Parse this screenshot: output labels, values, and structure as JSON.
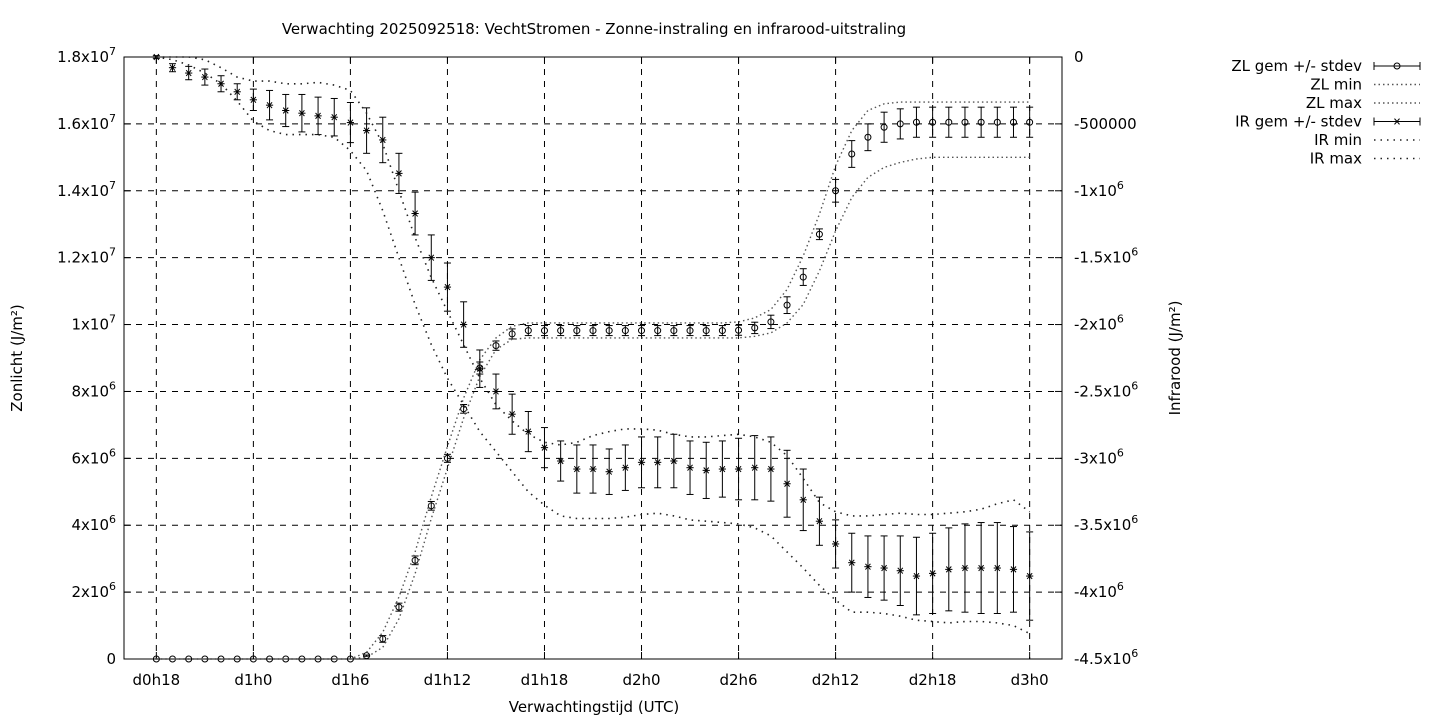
{
  "chart_data": {
    "type": "line",
    "title": "Verwachting 2025092518: VechtStromen - Zonne-instraling en infrarood-uitstraling",
    "xlabel": "Verwachtingstijd (UTC)",
    "ylabel": "Zonlicht (J/m²)",
    "y2label": "Infrarood (J/m²)",
    "x_tick_labels": [
      "d0h18",
      "d1h0",
      "d1h6",
      "d1h12",
      "d1h18",
      "d2h0",
      "d2h6",
      "d2h12",
      "d2h18",
      "d3h0"
    ],
    "x_tick_values": [
      0,
      6,
      12,
      18,
      24,
      30,
      36,
      42,
      48,
      54
    ],
    "xlim": [
      -2,
      56
    ],
    "ylim": [
      0,
      18000000
    ],
    "y2lim": [
      -4500000,
      0
    ],
    "y_ticks": [
      {
        "value": 0,
        "mant": "0",
        "exp": ""
      },
      {
        "value": 2000000,
        "mant": "2x10",
        "exp": "6"
      },
      {
        "value": 4000000,
        "mant": "4x10",
        "exp": "6"
      },
      {
        "value": 6000000,
        "mant": "6x10",
        "exp": "6"
      },
      {
        "value": 8000000,
        "mant": "8x10",
        "exp": "6"
      },
      {
        "value": 10000000,
        "mant": "1x10",
        "exp": "7"
      },
      {
        "value": 12000000,
        "mant": "1.2x10",
        "exp": "7"
      },
      {
        "value": 14000000,
        "mant": "1.4x10",
        "exp": "7"
      },
      {
        "value": 16000000,
        "mant": "1.6x10",
        "exp": "7"
      },
      {
        "value": 18000000,
        "mant": "1.8x10",
        "exp": "7"
      }
    ],
    "y2_ticks": [
      {
        "value": 0,
        "mant": "0",
        "exp": ""
      },
      {
        "value": -500000,
        "mant": "-500000",
        "exp": ""
      },
      {
        "value": -1000000,
        "mant": "-1x10",
        "exp": "6"
      },
      {
        "value": -1500000,
        "mant": "-1.5x10",
        "exp": "6"
      },
      {
        "value": -2000000,
        "mant": "-2x10",
        "exp": "6"
      },
      {
        "value": -2500000,
        "mant": "-2.5x10",
        "exp": "6"
      },
      {
        "value": -3000000,
        "mant": "-3x10",
        "exp": "6"
      },
      {
        "value": -3500000,
        "mant": "-3.5x10",
        "exp": "6"
      },
      {
        "value": -4000000,
        "mant": "-4x10",
        "exp": "6"
      },
      {
        "value": -4500000,
        "mant": "-4.5x10",
        "exp": "6"
      }
    ],
    "grid": true,
    "legend_position": "top-right outside",
    "legend": [
      {
        "label": "ZL gem +/- stdev",
        "style": "errorbar-circle"
      },
      {
        "label": "ZL min",
        "style": "dotted"
      },
      {
        "label": "ZL max",
        "style": "dotted"
      },
      {
        "label": "IR gem +/- stdev",
        "style": "errorbar-star"
      },
      {
        "label": "IR min",
        "style": "dotted"
      },
      {
        "label": "IR max",
        "style": "dotted"
      }
    ],
    "x": [
      0,
      1,
      2,
      3,
      4,
      5,
      6,
      7,
      8,
      9,
      10,
      11,
      12,
      13,
      14,
      15,
      16,
      17,
      18,
      19,
      20,
      21,
      22,
      23,
      24,
      25,
      26,
      27,
      28,
      29,
      30,
      31,
      32,
      33,
      34,
      35,
      36,
      37,
      38,
      39,
      40,
      41,
      42,
      43,
      44,
      45,
      46,
      47,
      48,
      49,
      50,
      51,
      52,
      53,
      54
    ],
    "series": [
      {
        "name": "ZL gem +/- stdev",
        "axis": "y",
        "marker": "circle",
        "values": [
          0,
          0,
          0,
          0,
          0,
          0,
          0,
          0,
          0,
          0,
          0,
          0,
          0,
          100000,
          600000,
          1550000,
          2950000,
          4580000,
          6000000,
          7480000,
          8700000,
          9370000,
          9720000,
          9820000,
          9820000,
          9820000,
          9820000,
          9820000,
          9820000,
          9820000,
          9820000,
          9820000,
          9820000,
          9820000,
          9820000,
          9820000,
          9830000,
          9900000,
          10080000,
          10580000,
          11420000,
          12700000,
          14000000,
          15100000,
          15600000,
          15900000,
          16000000,
          16050000,
          16050000,
          16050000,
          16050000,
          16050000,
          16050000,
          16050000,
          16050000
        ],
        "stdev": [
          0,
          0,
          0,
          0,
          0,
          0,
          0,
          0,
          0,
          0,
          0,
          0,
          0,
          20000,
          100000,
          120000,
          130000,
          130000,
          120000,
          130000,
          180000,
          140000,
          150000,
          150000,
          150000,
          150000,
          150000,
          150000,
          150000,
          150000,
          150000,
          150000,
          150000,
          150000,
          150000,
          150000,
          150000,
          170000,
          200000,
          250000,
          250000,
          160000,
          340000,
          400000,
          400000,
          450000,
          450000,
          450000,
          450000,
          450000,
          450000,
          450000,
          450000,
          450000,
          450000
        ]
      },
      {
        "name": "ZL min",
        "axis": "y",
        "values": [
          0,
          0,
          0,
          0,
          0,
          0,
          0,
          0,
          0,
          0,
          0,
          0,
          0,
          50000,
          350000,
          1200000,
          2550000,
          4200000,
          5700000,
          7200000,
          8450000,
          9250000,
          9560000,
          9600000,
          9600000,
          9600000,
          9600000,
          9600000,
          9600000,
          9600000,
          9600000,
          9600000,
          9600000,
          9600000,
          9600000,
          9600000,
          9600000,
          9650000,
          9750000,
          10050000,
          10600000,
          11600000,
          12800000,
          13800000,
          14400000,
          14700000,
          14850000,
          14950000,
          15000000,
          15000000,
          15000000,
          15000000,
          15000000,
          15000000,
          15000000
        ]
      },
      {
        "name": "ZL max",
        "axis": "y",
        "values": [
          0,
          0,
          0,
          0,
          0,
          0,
          0,
          0,
          0,
          0,
          0,
          0,
          0,
          200000,
          800000,
          1850000,
          3200000,
          4850000,
          6350000,
          7800000,
          8950000,
          9600000,
          9950000,
          10050000,
          10050000,
          10050000,
          10050000,
          10050000,
          10050000,
          10050000,
          10050000,
          10050000,
          10050000,
          10050000,
          10050000,
          10050000,
          10080000,
          10200000,
          10450000,
          11050000,
          12050000,
          13300000,
          14750000,
          15800000,
          16400000,
          16600000,
          16650000,
          16650000,
          16650000,
          16650000,
          16650000,
          16650000,
          16650000,
          16650000,
          16650000
        ]
      },
      {
        "name": "IR gem +/- stdev",
        "axis": "y2",
        "marker": "star",
        "values": [
          0,
          -80000,
          -120000,
          -150000,
          -200000,
          -260000,
          -320000,
          -360000,
          -400000,
          -420000,
          -440000,
          -450000,
          -490000,
          -550000,
          -620000,
          -870000,
          -1170000,
          -1500000,
          -1720000,
          -2000000,
          -2330000,
          -2500000,
          -2670000,
          -2800000,
          -2920000,
          -3020000,
          -3080000,
          -3080000,
          -3100000,
          -3070000,
          -3030000,
          -3030000,
          -3020000,
          -3070000,
          -3090000,
          -3080000,
          -3080000,
          -3070000,
          -3080000,
          -3190000,
          -3310000,
          -3470000,
          -3640000,
          -3780000,
          -3810000,
          -3820000,
          -3840000,
          -3880000,
          -3860000,
          -3830000,
          -3820000,
          -3820000,
          -3820000,
          -3830000,
          -3880000
        ],
        "stdev": [
          10000,
          30000,
          50000,
          60000,
          60000,
          60000,
          80000,
          110000,
          120000,
          140000,
          140000,
          140000,
          150000,
          170000,
          170000,
          150000,
          160000,
          170000,
          180000,
          170000,
          140000,
          130000,
          150000,
          150000,
          150000,
          150000,
          180000,
          180000,
          170000,
          170000,
          190000,
          190000,
          200000,
          200000,
          210000,
          210000,
          230000,
          240000,
          240000,
          250000,
          230000,
          180000,
          180000,
          220000,
          230000,
          240000,
          260000,
          290000,
          300000,
          310000,
          330000,
          340000,
          340000,
          320000,
          330000
        ]
      },
      {
        "name": "IR min",
        "axis": "y2",
        "values": [
          0,
          -20000,
          -60000,
          -120000,
          -200000,
          -330000,
          -480000,
          -550000,
          -580000,
          -580000,
          -580000,
          -600000,
          -700000,
          -850000,
          -1150000,
          -1500000,
          -1850000,
          -2150000,
          -2400000,
          -2600000,
          -2800000,
          -2950000,
          -3100000,
          -3250000,
          -3350000,
          -3430000,
          -3450000,
          -3450000,
          -3450000,
          -3440000,
          -3420000,
          -3410000,
          -3430000,
          -3460000,
          -3470000,
          -3480000,
          -3490000,
          -3520000,
          -3580000,
          -3700000,
          -3820000,
          -3950000,
          -4060000,
          -4150000,
          -4150000,
          -4160000,
          -4180000,
          -4210000,
          -4220000,
          -4230000,
          -4220000,
          -4220000,
          -4230000,
          -4250000,
          -4310000
        ]
      },
      {
        "name": "IR max",
        "axis": "y2",
        "values": [
          0,
          0,
          0,
          -20000,
          -80000,
          -150000,
          -180000,
          -180000,
          -200000,
          -200000,
          -190000,
          -210000,
          -250000,
          -420000,
          -650000,
          -1000000,
          -1350000,
          -1650000,
          -1900000,
          -2150000,
          -2400000,
          -2600000,
          -2720000,
          -2820000,
          -2880000,
          -2900000,
          -2880000,
          -2830000,
          -2800000,
          -2780000,
          -2780000,
          -2790000,
          -2820000,
          -2840000,
          -2840000,
          -2830000,
          -2820000,
          -2840000,
          -2880000,
          -2980000,
          -3150000,
          -3330000,
          -3400000,
          -3430000,
          -3430000,
          -3420000,
          -3410000,
          -3420000,
          -3420000,
          -3410000,
          -3400000,
          -3380000,
          -3340000,
          -3310000,
          -3400000
        ]
      }
    ]
  }
}
